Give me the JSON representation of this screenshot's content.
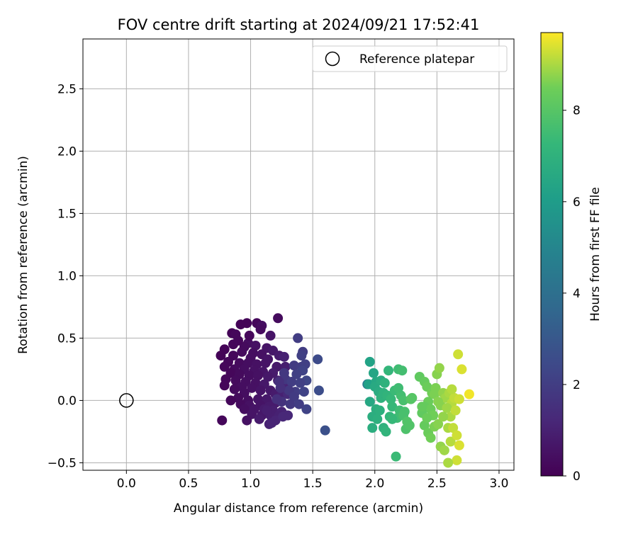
{
  "chart_data": {
    "type": "scatter",
    "title": "FOV centre drift starting at 2024/09/21 17:52:41",
    "xlabel": "Angular distance from reference (arcmin)",
    "ylabel": "Rotation from reference (arcmin)",
    "xlim": [
      -0.35,
      3.12
    ],
    "ylim": [
      -0.56,
      2.9
    ],
    "xticks": [
      0.0,
      0.5,
      1.0,
      1.5,
      2.0,
      2.5,
      3.0
    ],
    "xtick_labels": [
      "0.0",
      "0.5",
      "1.0",
      "1.5",
      "2.0",
      "2.5",
      "3.0"
    ],
    "yticks": [
      -0.5,
      0.0,
      0.5,
      1.0,
      1.5,
      2.0,
      2.5
    ],
    "ytick_labels": [
      "−0.5",
      "0.0",
      "0.5",
      "1.0",
      "1.5",
      "2.0",
      "2.5"
    ],
    "grid": true,
    "legend": {
      "position": "top-right",
      "entries": [
        "Reference platepar"
      ]
    },
    "reference_point": {
      "x": 0.0,
      "y": 0.0,
      "label": "Reference platepar"
    },
    "colorbar": {
      "label": "Hours from first FF file",
      "colormap": "viridis",
      "min": 0,
      "max": 9.7,
      "ticks": [
        0,
        2,
        4,
        6,
        8
      ],
      "tick_labels": [
        "0",
        "2",
        "4",
        "6",
        "8"
      ]
    },
    "series": [
      {
        "points": [
          [
            1.22,
            0.66,
            0.3
          ],
          [
            0.97,
            0.62,
            0.1
          ],
          [
            1.05,
            0.62,
            0.2
          ],
          [
            0.92,
            0.61,
            0.1
          ],
          [
            1.09,
            0.6,
            0.4
          ],
          [
            1.08,
            0.57,
            0.3
          ],
          [
            0.85,
            0.54,
            0.1
          ],
          [
            0.88,
            0.53,
            0.2
          ],
          [
            1.16,
            0.52,
            0.6
          ],
          [
            0.98,
            0.46,
            0.4
          ],
          [
            1.04,
            0.44,
            0.5
          ],
          [
            0.86,
            0.45,
            0.2
          ],
          [
            0.95,
            0.43,
            0.3
          ],
          [
            0.79,
            0.41,
            0.1
          ],
          [
            1.13,
            0.42,
            0.6
          ],
          [
            1.18,
            0.4,
            0.7
          ],
          [
            0.93,
            0.39,
            0.3
          ],
          [
            1.02,
            0.38,
            0.4
          ],
          [
            1.09,
            0.37,
            0.5
          ],
          [
            0.76,
            0.36,
            0.1
          ],
          [
            0.86,
            0.36,
            0.2
          ],
          [
            1.23,
            0.36,
            0.8
          ],
          [
            1.27,
            0.35,
            1.0
          ],
          [
            1.0,
            0.34,
            0.4
          ],
          [
            1.14,
            0.33,
            0.6
          ],
          [
            0.82,
            0.31,
            0.2
          ],
          [
            0.91,
            0.3,
            0.3
          ],
          [
            0.98,
            0.3,
            0.4
          ],
          [
            1.05,
            0.29,
            0.5
          ],
          [
            1.12,
            0.3,
            0.6
          ],
          [
            1.21,
            0.27,
            0.7
          ],
          [
            1.28,
            0.27,
            0.9
          ],
          [
            0.79,
            0.27,
            0.2
          ],
          [
            0.87,
            0.25,
            0.3
          ],
          [
            0.95,
            0.25,
            0.4
          ],
          [
            1.03,
            0.24,
            0.5
          ],
          [
            1.1,
            0.23,
            0.6
          ],
          [
            1.18,
            0.22,
            0.8
          ],
          [
            0.84,
            0.22,
            0.2
          ],
          [
            0.91,
            0.21,
            0.3
          ],
          [
            0.99,
            0.2,
            0.4
          ],
          [
            1.06,
            0.2,
            0.5
          ],
          [
            1.14,
            0.19,
            0.7
          ],
          [
            1.22,
            0.16,
            0.9
          ],
          [
            1.28,
            0.14,
            1.1
          ],
          [
            0.8,
            0.17,
            0.2
          ],
          [
            0.88,
            0.16,
            0.3
          ],
          [
            0.96,
            0.15,
            0.4
          ],
          [
            1.04,
            0.14,
            0.5
          ],
          [
            1.11,
            0.13,
            0.7
          ],
          [
            0.79,
            0.12,
            0.2
          ],
          [
            0.93,
            0.11,
            0.4
          ],
          [
            1.01,
            0.1,
            0.5
          ],
          [
            1.08,
            0.08,
            0.6
          ],
          [
            1.16,
            0.08,
            0.7
          ],
          [
            0.87,
            0.09,
            0.3
          ],
          [
            0.95,
            0.06,
            0.4
          ],
          [
            1.2,
            0.05,
            0.8
          ],
          [
            1.25,
            0.04,
            1.0
          ],
          [
            1.3,
            0.05,
            1.3
          ],
          [
            0.9,
            0.02,
            0.3
          ],
          [
            0.98,
            0.0,
            0.4
          ],
          [
            1.06,
            0.01,
            0.6
          ],
          [
            1.13,
            0.01,
            0.7
          ],
          [
            0.84,
            0.0,
            0.2
          ],
          [
            1.2,
            -0.02,
            0.8
          ],
          [
            0.92,
            -0.03,
            0.3
          ],
          [
            0.99,
            -0.04,
            0.5
          ],
          [
            1.08,
            -0.04,
            0.6
          ],
          [
            1.15,
            -0.05,
            0.8
          ],
          [
            0.95,
            -0.07,
            0.4
          ],
          [
            1.03,
            -0.07,
            0.6
          ],
          [
            1.11,
            -0.07,
            0.8
          ],
          [
            1.18,
            -0.08,
            0.9
          ],
          [
            1.25,
            -0.09,
            1.1
          ],
          [
            1.01,
            -0.11,
            0.6
          ],
          [
            1.09,
            -0.12,
            0.7
          ],
          [
            1.16,
            -0.12,
            0.9
          ],
          [
            1.23,
            -0.12,
            1.0
          ],
          [
            1.3,
            -0.12,
            1.2
          ],
          [
            0.97,
            -0.16,
            0.5
          ],
          [
            1.07,
            -0.15,
            0.8
          ],
          [
            1.2,
            -0.16,
            1.1
          ],
          [
            0.77,
            -0.16,
            0.2
          ],
          [
            1.15,
            -0.19,
            1.0
          ],
          [
            1.26,
            -0.13,
            1.2
          ],
          [
            1.17,
            -0.18,
            1.1
          ],
          [
            1.13,
            -0.08,
            0.9
          ],
          [
            0.99,
            0.52,
            0.2
          ],
          [
            0.9,
            0.48,
            0.2
          ],
          [
            1.38,
            0.5,
            2.0
          ],
          [
            1.42,
            0.39,
            2.0
          ],
          [
            1.41,
            0.36,
            2.1
          ],
          [
            1.35,
            0.28,
            1.9
          ],
          [
            1.41,
            0.27,
            2.0
          ],
          [
            1.44,
            0.29,
            2.1
          ],
          [
            1.42,
            0.24,
            2.2
          ],
          [
            1.27,
            0.22,
            1.8
          ],
          [
            1.37,
            0.21,
            2.1
          ],
          [
            1.45,
            0.16,
            2.3
          ],
          [
            1.28,
            0.17,
            1.8
          ],
          [
            1.33,
            0.15,
            2.0
          ],
          [
            1.4,
            0.14,
            2.1
          ],
          [
            1.54,
            0.33,
            2.5
          ],
          [
            1.23,
            0.15,
            1.5
          ],
          [
            1.36,
            0.07,
            2.0
          ],
          [
            1.43,
            0.07,
            2.2
          ],
          [
            1.31,
            0.08,
            1.8
          ],
          [
            1.55,
            0.08,
            2.6
          ],
          [
            1.24,
            0.1,
            1.5
          ],
          [
            1.35,
            0.03,
            1.9
          ],
          [
            1.25,
            -0.01,
            1.6
          ],
          [
            1.32,
            -0.03,
            1.8
          ],
          [
            1.45,
            -0.07,
            2.2
          ],
          [
            1.6,
            -0.24,
            2.7
          ],
          [
            1.21,
            0.01,
            1.5
          ],
          [
            1.39,
            -0.03,
            2.0
          ],
          [
            1.94,
            0.13,
            4.5
          ],
          [
            1.96,
            0.31,
            6.3
          ],
          [
            1.95,
            0.13,
            6.2
          ],
          [
            1.99,
            0.22,
            6.4
          ],
          [
            2.01,
            0.15,
            6.5
          ],
          [
            2.0,
            0.11,
            6.6
          ],
          [
            2.03,
            0.07,
            6.7
          ],
          [
            2.05,
            0.16,
            6.7
          ],
          [
            1.96,
            -0.01,
            6.5
          ],
          [
            2.01,
            -0.07,
            6.8
          ],
          [
            2.04,
            -0.08,
            6.9
          ],
          [
            2.05,
            0.02,
            7.0
          ],
          [
            2.07,
            0.06,
            7.0
          ],
          [
            2.08,
            0.14,
            7.0
          ],
          [
            2.1,
            0.04,
            7.1
          ],
          [
            2.11,
            0.24,
            7.2
          ],
          [
            2.13,
            0.01,
            7.3
          ],
          [
            2.14,
            -0.05,
            7.3
          ],
          [
            2.16,
            0.08,
            7.4
          ],
          [
            2.19,
            0.25,
            7.5
          ],
          [
            2.2,
            -0.08,
            7.5
          ],
          [
            2.21,
            0.04,
            7.6
          ],
          [
            2.22,
            0.24,
            7.6
          ],
          [
            2.23,
            0.0,
            7.7
          ],
          [
            2.24,
            -0.09,
            7.7
          ],
          [
            1.98,
            -0.13,
            6.8
          ],
          [
            2.02,
            -0.15,
            6.9
          ],
          [
            2.07,
            -0.22,
            7.0
          ],
          [
            2.09,
            -0.25,
            7.1
          ],
          [
            2.12,
            -0.13,
            7.2
          ],
          [
            2.18,
            -0.14,
            7.5
          ],
          [
            2.23,
            -0.12,
            7.7
          ],
          [
            2.25,
            -0.23,
            7.8
          ],
          [
            2.28,
            -0.2,
            7.9
          ],
          [
            2.17,
            -0.45,
            7.4
          ],
          [
            1.98,
            -0.22,
            6.8
          ],
          [
            2.14,
            -0.15,
            7.3
          ],
          [
            2.19,
            0.1,
            7.5
          ],
          [
            2.26,
            -0.17,
            7.9
          ],
          [
            2.29,
            0.01,
            8.0
          ],
          [
            2.3,
            0.02,
            8.0
          ],
          [
            2.36,
            0.19,
            8.2
          ],
          [
            2.4,
            0.15,
            8.3
          ],
          [
            2.42,
            0.11,
            8.4
          ],
          [
            2.46,
            0.06,
            8.5
          ],
          [
            2.49,
            0.1,
            8.6
          ],
          [
            2.5,
            0.21,
            8.7
          ],
          [
            2.52,
            0.26,
            8.8
          ],
          [
            2.48,
            0.05,
            8.6
          ],
          [
            2.43,
            -0.01,
            8.4
          ],
          [
            2.4,
            -0.05,
            8.3
          ],
          [
            2.45,
            -0.07,
            8.4
          ],
          [
            2.47,
            -0.12,
            8.5
          ],
          [
            2.53,
            -0.04,
            8.7
          ],
          [
            2.55,
            0.06,
            8.8
          ],
          [
            2.57,
            0.02,
            8.9
          ],
          [
            2.6,
            0.06,
            9.0
          ],
          [
            2.62,
            -0.02,
            9.1
          ],
          [
            2.64,
            0.02,
            9.2
          ],
          [
            2.58,
            -0.06,
            8.9
          ],
          [
            2.61,
            -0.13,
            9.0
          ],
          [
            2.65,
            -0.08,
            9.2
          ],
          [
            2.68,
            0.01,
            9.3
          ],
          [
            2.38,
            -0.1,
            8.2
          ],
          [
            2.4,
            -0.2,
            8.3
          ],
          [
            2.43,
            -0.26,
            8.4
          ],
          [
            2.45,
            -0.3,
            8.5
          ],
          [
            2.48,
            -0.21,
            8.6
          ],
          [
            2.51,
            -0.19,
            8.7
          ],
          [
            2.53,
            -0.37,
            8.8
          ],
          [
            2.56,
            -0.4,
            8.9
          ],
          [
            2.59,
            -0.22,
            9.0
          ],
          [
            2.61,
            -0.33,
            9.1
          ],
          [
            2.63,
            -0.22,
            9.2
          ],
          [
            2.66,
            -0.28,
            9.3
          ],
          [
            2.68,
            -0.36,
            9.4
          ],
          [
            2.66,
            -0.48,
            9.3
          ],
          [
            2.59,
            -0.5,
            9.0
          ],
          [
            2.67,
            0.37,
            9.3
          ],
          [
            2.7,
            0.25,
            9.4
          ],
          [
            2.76,
            0.05,
            9.6
          ],
          [
            2.62,
            0.09,
            9.1
          ],
          [
            2.55,
            -0.13,
            8.8
          ],
          [
            2.42,
            -0.14,
            8.4
          ],
          [
            2.38,
            -0.05,
            8.3
          ],
          [
            2.51,
            -0.01,
            8.7
          ]
        ]
      }
    ]
  }
}
